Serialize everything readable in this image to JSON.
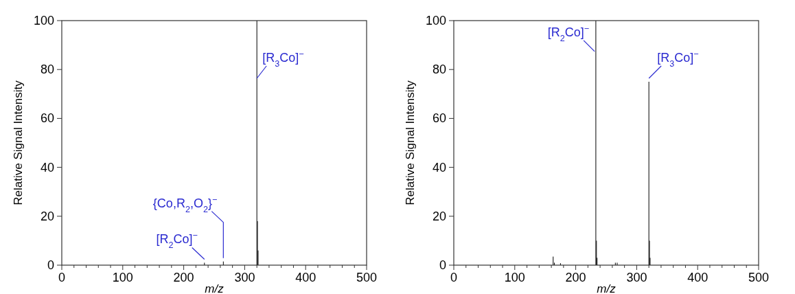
{
  "chart_data": [
    {
      "type": "bar",
      "xlabel": "m/z",
      "ylabel": "Relative Signal Intensity",
      "x": [
        234,
        265,
        320,
        321,
        322
      ],
      "values": [
        1,
        1.5,
        100,
        18,
        6
      ],
      "color": "#000000",
      "xlim": [
        0,
        500
      ],
      "ylim": [
        0,
        100
      ],
      "xticks": [
        0,
        {
          "value": 20,
          "label": null
        },
        {
          "value": 40,
          "label": null
        },
        {
          "value": 60,
          "label": null
        },
        {
          "value": 80,
          "label": null
        },
        100,
        {
          "value": 120,
          "label": null
        },
        {
          "value": 140,
          "label": null
        },
        {
          "value": 160,
          "label": null
        },
        {
          "value": 180,
          "label": null
        },
        200,
        {
          "value": 220,
          "label": null
        },
        {
          "value": 240,
          "label": null
        },
        {
          "value": 260,
          "label": null
        },
        {
          "value": 280,
          "label": null
        },
        300,
        {
          "value": 320,
          "label": null
        },
        {
          "value": 340,
          "label": null
        },
        {
          "value": 360,
          "label": null
        },
        {
          "value": 380,
          "label": null
        },
        400,
        {
          "value": 420,
          "label": null
        },
        {
          "value": 440,
          "label": null
        },
        {
          "value": 460,
          "label": null
        },
        {
          "value": 480,
          "label": null
        },
        500
      ],
      "yticks": [
        0,
        20,
        40,
        60,
        80,
        100
      ],
      "grid": false,
      "annotations": [
        {
          "text": "[R$_{3}$Co]$^{−}$",
          "x": 320,
          "y": 75
        },
        {
          "text": "{Co,R$_{2}$,O$_{2}$}$^{−}$",
          "x": 265,
          "y": 1.5
        },
        {
          "text": "[R$_{2}$Co]$^{−}$",
          "x": 234,
          "y": 1
        }
      ]
    },
    {
      "type": "bar",
      "xlabel": "m/z",
      "ylabel": "Relative Signal Intensity",
      "x": [
        163,
        165,
        175,
        233,
        234,
        235,
        265,
        268,
        320,
        321,
        322
      ],
      "values": [
        3.5,
        1,
        0.8,
        100,
        10,
        3,
        1,
        1,
        75,
        10,
        3
      ],
      "color": "#000000",
      "xlim": [
        0,
        500
      ],
      "ylim": [
        0,
        100
      ],
      "xticks": [
        0,
        {
          "value": 20,
          "label": null
        },
        {
          "value": 40,
          "label": null
        },
        {
          "value": 60,
          "label": null
        },
        {
          "value": 80,
          "label": null
        },
        100,
        {
          "value": 120,
          "label": null
        },
        {
          "value": 140,
          "label": null
        },
        {
          "value": 160,
          "label": null
        },
        {
          "value": 180,
          "label": null
        },
        200,
        {
          "value": 220,
          "label": null
        },
        {
          "value": 240,
          "label": null
        },
        {
          "value": 260,
          "label": null
        },
        {
          "value": 280,
          "label": null
        },
        300,
        {
          "value": 320,
          "label": null
        },
        {
          "value": 340,
          "label": null
        },
        {
          "value": 360,
          "label": null
        },
        {
          "value": 380,
          "label": null
        },
        400,
        {
          "value": 420,
          "label": null
        },
        {
          "value": 440,
          "label": null
        },
        {
          "value": 460,
          "label": null
        },
        {
          "value": 480,
          "label": null
        },
        500
      ],
      "yticks": [
        0,
        20,
        40,
        60,
        80,
        100
      ],
      "grid": false,
      "annotations": [
        {
          "text": "[R$_{2}$Co]$^{−}$",
          "x": 231,
          "y": 86
        },
        {
          "text": "[R$_{3}$Co]$^{−}$",
          "x": 320,
          "y": 75
        }
      ]
    }
  ]
}
